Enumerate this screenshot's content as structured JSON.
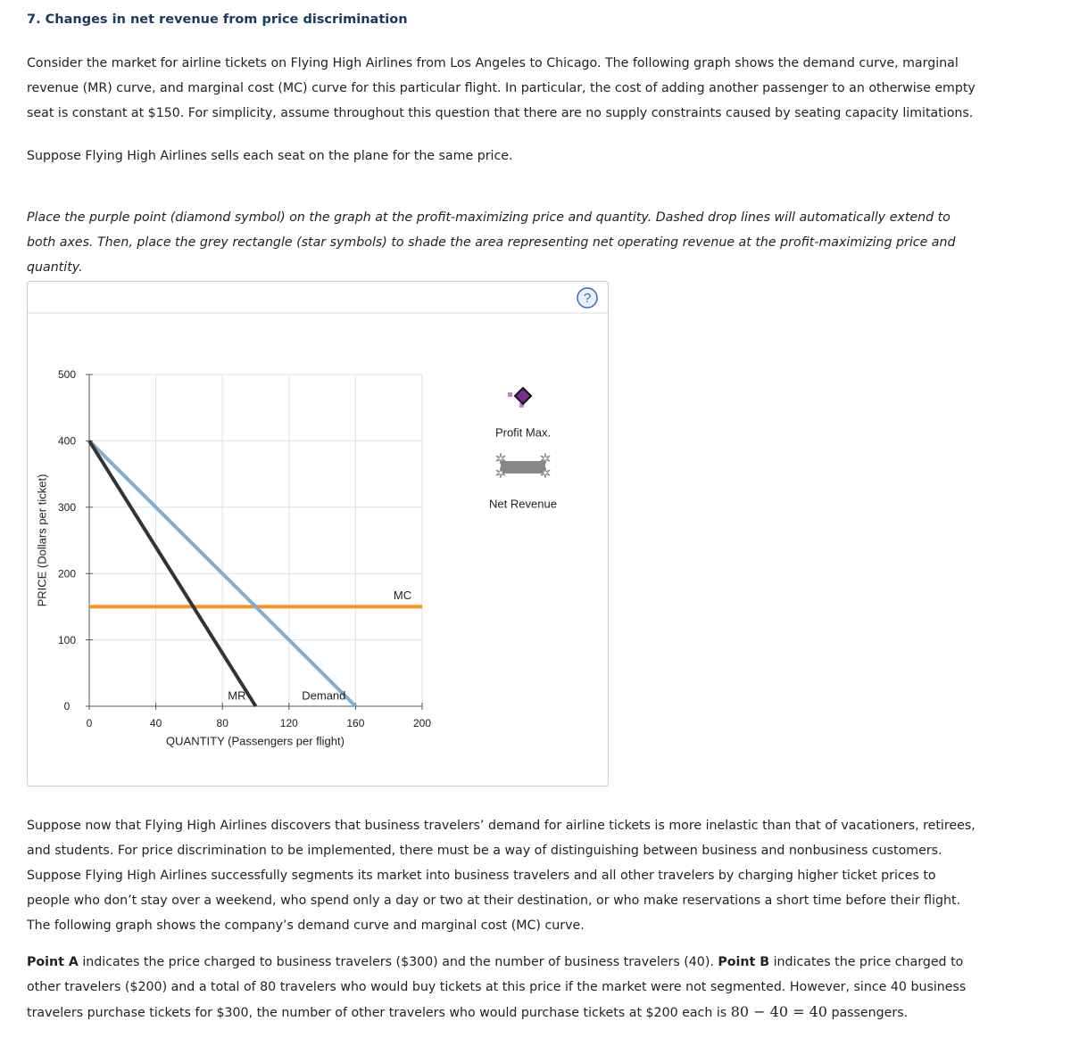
{
  "title": "7. Changes in net revenue from price discrimination",
  "intro": "Consider the market for airline tickets on Flying High Airlines from Los Angeles to Chicago. The following graph shows the demand curve, marginal revenue (MR) curve, and marginal cost (MC) curve for this particular flight. In particular, the cost of adding another passenger to an otherwise empty seat is constant at $150. For simplicity, assume throughout this question that there are no supply constraints caused by seating capacity limitations.",
  "same_price": "Suppose Flying High Airlines sells each seat on the plane for the same price.",
  "instructions": "Place the purple point (diamond symbol) on the graph at the profit-maximizing price and quantity. Dashed drop lines will automatically extend to both axes. Then, place the grey rectangle (star symbols) to shade the area representing net operating revenue at the profit-maximizing price and quantity.",
  "chart_data": {
    "type": "line",
    "x_label": "QUANTITY (Passengers per flight)",
    "y_label": "PRICE (Dollars per ticket)",
    "xlim": [
      0,
      200
    ],
    "ylim": [
      0,
      500
    ],
    "xticks": [
      0,
      40,
      80,
      120,
      160,
      200
    ],
    "yticks": [
      0,
      100,
      200,
      300,
      400,
      500
    ],
    "grid": true,
    "series": [
      {
        "name": "MR",
        "color": "#333333",
        "x": [
          0,
          100
        ],
        "values": [
          400,
          0
        ]
      },
      {
        "name": "Demand",
        "color": "#7bafd8",
        "x": [
          0,
          160
        ],
        "values": [
          400,
          0
        ]
      },
      {
        "name": "MC",
        "color": "#f7941d",
        "x": [
          0,
          200
        ],
        "values": [
          150,
          150
        ]
      }
    ],
    "tools": [
      {
        "label": "Profit Max.",
        "symbol": "diamond"
      },
      {
        "label": "Net Revenue",
        "symbol": "rectangle"
      }
    ]
  },
  "after_text": "Suppose now that Flying High Airlines discovers that business travelers’ demand for airline tickets is more inelastic than that of vacationers, retirees, and students. For price discrimination to be implemented, there must be a way of distinguishing between business and nonbusiness customers. Suppose Flying High Airlines successfully segments its market into business travelers and all other travelers by charging higher ticket prices to people who don’t stay over a weekend, who spend only a day or two at their destination, or who make reservations a short time before their flight. The following graph shows the company’s demand curve and marginal cost (MC) curve.",
  "points": [
    {
      "text": "Point A",
      "style": "bold"
    },
    {
      "text": " indicates the price charged to business travelers ($300) and the number of business travelers (40). "
    },
    {
      "text": "Point B",
      "style": "bold"
    },
    {
      "text": " indicates the price charged to other travelers ($200) and a total of 80 travelers who would buy tickets at this price if the market were not segmented. However, since 40 business travelers purchase tickets for $300, the number of other travelers who would purchase tickets at $200 each is "
    },
    {
      "text": "80 − 40 = 40",
      "style": "math"
    },
    {
      "text": " passengers."
    }
  ]
}
